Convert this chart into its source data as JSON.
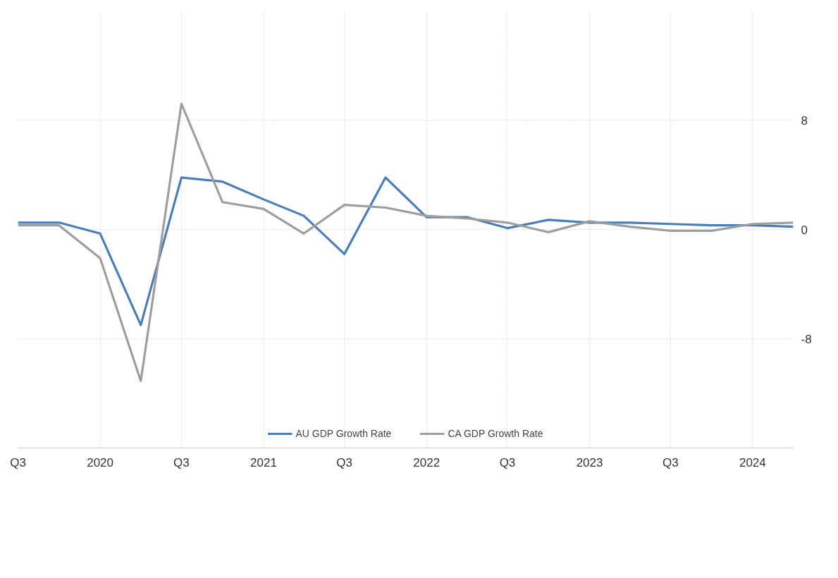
{
  "chart_data": {
    "type": "line",
    "x": [
      "2019-07",
      "2019-10",
      "2020-01",
      "2020-04",
      "2020-07",
      "2020-10",
      "2021-01",
      "2021-04",
      "2021-07",
      "2021-10",
      "2022-01",
      "2022-04",
      "2022-07",
      "2022-10",
      "2023-01",
      "2023-04",
      "2023-07",
      "2023-10",
      "2024-01",
      "2024-04"
    ],
    "series": [
      {
        "name": "AU GDP Growth Rate",
        "color": "#4a7ebb",
        "values": [
          0.5,
          0.5,
          -0.3,
          -7,
          3.8,
          3.5,
          2.2,
          1.0,
          -1.8,
          3.8,
          0.9,
          0.9,
          0.1,
          0.7,
          0.5,
          0.5,
          0.4,
          0.3,
          0.3,
          0.2
        ]
      },
      {
        "name": "CA GDP Growth Rate",
        "color": "#9e9e9e",
        "values": [
          0.3,
          0.3,
          -2.1,
          -11.1,
          9.2,
          2.0,
          1.5,
          -0.3,
          1.8,
          1.6,
          1.0,
          0.8,
          0.5,
          -0.2,
          0.6,
          0.2,
          -0.1,
          -0.1,
          0.4,
          0.5
        ]
      }
    ],
    "xlim": [
      "2019-07",
      "2024-04"
    ],
    "xticks": [
      {
        "value": "2019-07",
        "label": "Q3"
      },
      {
        "value": "2020-01",
        "label": "2020"
      },
      {
        "value": "2020-07",
        "label": "Q3"
      },
      {
        "value": "2021-01",
        "label": "2021"
      },
      {
        "value": "2021-07",
        "label": "Q3"
      },
      {
        "value": "2022-01",
        "label": "2022"
      },
      {
        "value": "2022-07",
        "label": "Q3"
      },
      {
        "value": "2023-01",
        "label": "2023"
      },
      {
        "value": "2023-07",
        "label": "Q3"
      },
      {
        "value": "2024-01",
        "label": "2024"
      }
    ],
    "ylim": [
      -16,
      16
    ],
    "yticks": [
      -8,
      0,
      8
    ],
    "grid": true,
    "legend": "bottom",
    "marker": "none",
    "line_style": "solid"
  }
}
